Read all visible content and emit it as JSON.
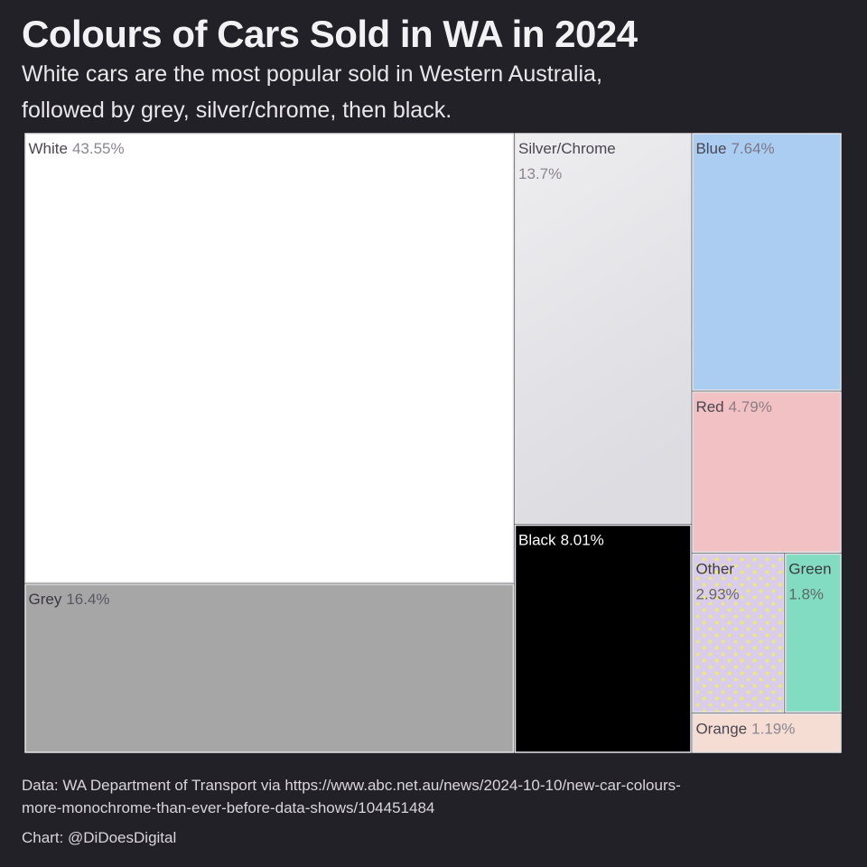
{
  "header": {
    "title": "Colours of Cars Sold in WA in 2024",
    "subtitle": "White cars are the most popular sold in Western Australia, followed by grey, silver/chrome, then black."
  },
  "footer": {
    "source": "Data: WA Department of Transport via https://www.abc.net.au/news/2024-10-10/new-car-colours-more-monochrome-than-ever-before-data-shows/104451484",
    "credit": "Chart: @DiDoesDigital"
  },
  "chart_data": {
    "type": "treemap",
    "title": "Colours of Cars Sold in WA in 2024",
    "unit": "%",
    "series": [
      {
        "name": "White",
        "value": 43.55,
        "value_label": "43.55%",
        "color": "#ffffff",
        "text_color": "#4a4650",
        "value_color": "#8a8690"
      },
      {
        "name": "Grey",
        "value": 16.4,
        "value_label": "16.4%",
        "color": "#a6a6a6",
        "text_color": "#3a373f",
        "value_color": "#5a5760"
      },
      {
        "name": "Silver/Chrome",
        "value": 13.7,
        "value_label": "13.7%",
        "color": "#e4e4e8",
        "text_color": "#4a4650",
        "value_color": "#8a8690"
      },
      {
        "name": "Black",
        "value": 8.01,
        "value_label": "8.01%",
        "color": "#000000",
        "text_color": "#ffffff",
        "value_color": "#ffffff"
      },
      {
        "name": "Blue",
        "value": 7.64,
        "value_label": "7.64%",
        "color": "#abcdf2",
        "text_color": "#4a4650",
        "value_color": "#7c7884"
      },
      {
        "name": "Red",
        "value": 4.79,
        "value_label": "4.79%",
        "color": "#f2c1c3",
        "text_color": "#4a4650",
        "value_color": "#8a7f84"
      },
      {
        "name": "Other",
        "value": 2.93,
        "value_label": "2.93%",
        "color": "#d9cde9",
        "pattern_dot_color": "#ede87a",
        "text_color": "#3f3b45",
        "value_color": "#6a6670"
      },
      {
        "name": "Green",
        "value": 1.8,
        "value_label": "1.8%",
        "color": "#82dcc2",
        "text_color": "#3a3a3a",
        "value_color": "#5e6a66"
      },
      {
        "name": "Orange",
        "value": 1.19,
        "value_label": "1.19%",
        "color": "#f6ddd4",
        "text_color": "#4a4650",
        "value_color": "#8a8690"
      }
    ],
    "border_color": "#e3e2e6"
  }
}
